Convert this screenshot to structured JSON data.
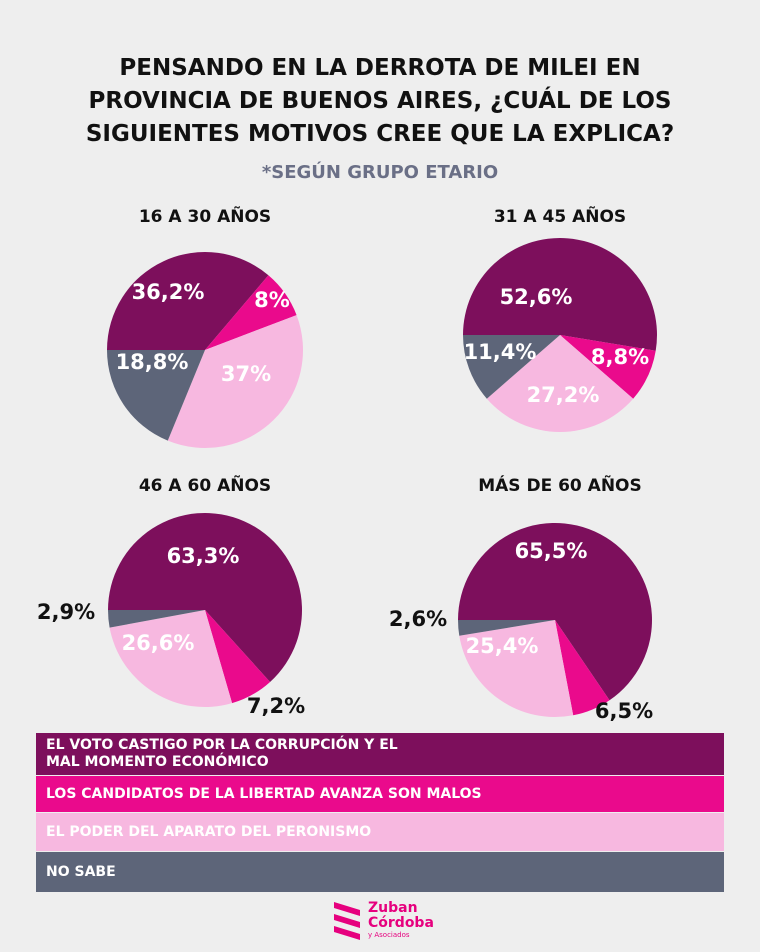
{
  "title": [
    "PENSANDO EN LA DERROTA DE MILEI EN",
    "PROVINCIA DE BUENOS AIRES, ¿CUÁL DE LOS",
    "SIGUIENTES MOTIVOS CREE QUE LA EXPLICA?"
  ],
  "subtitle": "*SEGÚN GRUPO ETARIO",
  "colors": {
    "corrupcion": "#7d0f5c",
    "candidatos": "#ea0a8c",
    "peronismo": "#f7b8e0",
    "nosabe": "#5d6579"
  },
  "legend": [
    {
      "label": "EL VOTO CASTIGO POR LA CORRUPCIÓN Y EL MAL MOMENTO ECONÓMICO",
      "color": "#7d0f5c"
    },
    {
      "label": "LOS CANDIDATOS DE LA LIBERTAD AVANZA SON MALOS",
      "color": "#ea0a8c"
    },
    {
      "label": "EL PODER DEL APARATO DEL PERONISMO",
      "color": "#f7b8e0"
    },
    {
      "label": "NO SABE",
      "color": "#5d6579"
    }
  ],
  "chart_data": [
    {
      "type": "pie",
      "title": "16 A 30 AÑOS",
      "categories": [
        "EL VOTO CASTIGO POR LA CORRUPCIÓN Y EL MAL MOMENTO ECONÓMICO",
        "LOS CANDIDATOS DE LA LIBERTAD AVANZA SON MALOS",
        "EL PODER DEL APARATO DEL PERONISMO",
        "NO SABE"
      ],
      "values": [
        36.2,
        8,
        37,
        18.8
      ],
      "labels": [
        "36,2%",
        "8%",
        "37%",
        "18,8%"
      ]
    },
    {
      "type": "pie",
      "title": "31 A 45 AÑOS",
      "categories": [
        "EL VOTO CASTIGO POR LA CORRUPCIÓN Y EL MAL MOMENTO ECONÓMICO",
        "LOS CANDIDATOS DE LA LIBERTAD AVANZA SON MALOS",
        "EL PODER DEL APARATO DEL PERONISMO",
        "NO SABE"
      ],
      "values": [
        52.6,
        8.8,
        27.2,
        11.4
      ],
      "labels": [
        "52,6%",
        "8,8%",
        "27,2%",
        "11,4%"
      ]
    },
    {
      "type": "pie",
      "title": "46 A 60 AÑOS",
      "categories": [
        "EL VOTO CASTIGO POR LA CORRUPCIÓN Y EL MAL MOMENTO ECONÓMICO",
        "LOS CANDIDATOS DE LA LIBERTAD AVANZA SON MALOS",
        "EL PODER DEL APARATO DEL PERONISMO",
        "NO SABE"
      ],
      "values": [
        63.3,
        7.2,
        26.6,
        2.9
      ],
      "labels": [
        "63,3%",
        "7,2%",
        "26,6%",
        "2,9%"
      ]
    },
    {
      "type": "pie",
      "title": "MÁS DE 60 AÑOS",
      "categories": [
        "EL VOTO CASTIGO POR LA CORRUPCIÓN Y EL MAL MOMENTO ECONÓMICO",
        "LOS CANDIDATOS DE LA LIBERTAD AVANZA SON MALOS",
        "EL PODER DEL APARATO DEL PERONISMO",
        "NO SABE"
      ],
      "values": [
        65.5,
        6.5,
        25.4,
        2.6
      ],
      "labels": [
        "65,5%",
        "6,5%",
        "25,4%",
        "2,6%"
      ]
    }
  ],
  "logo": {
    "line1": "Zuban",
    "line2": "Córdoba",
    "line3": "y Asociados"
  }
}
